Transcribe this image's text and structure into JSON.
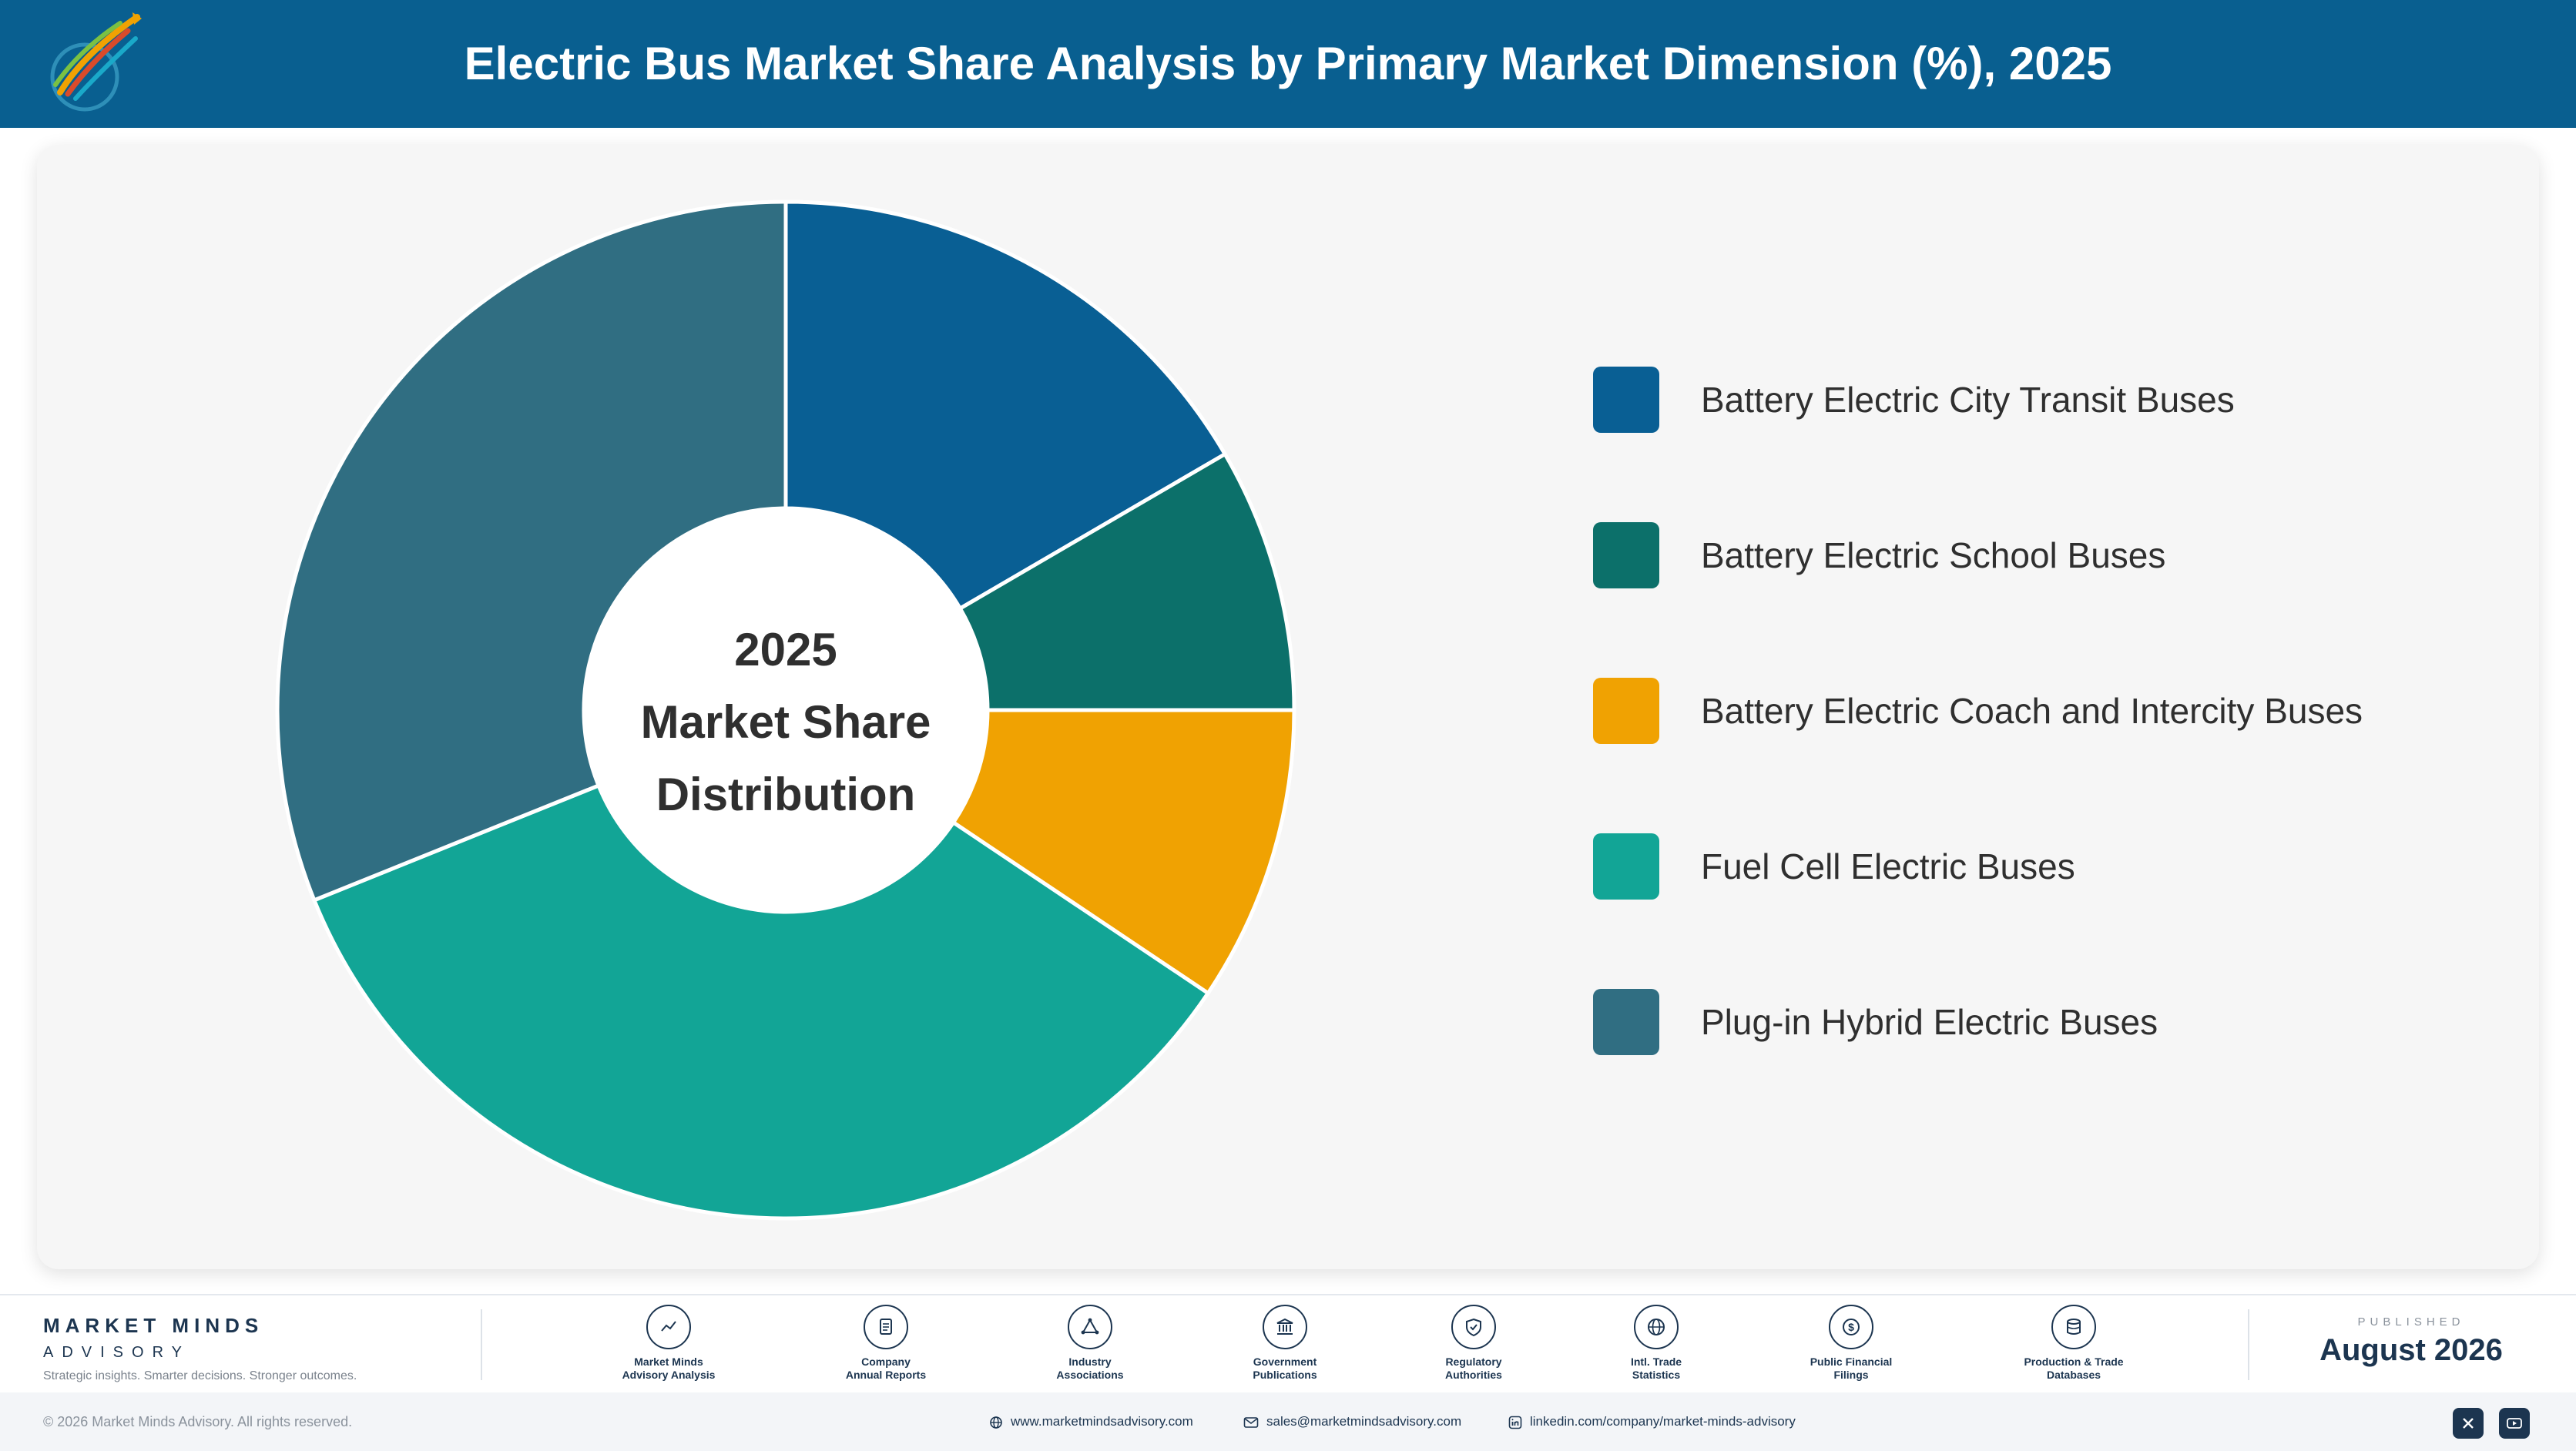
{
  "header": {
    "title": "Electric Bus Market Share Analysis by Primary Market Dimension (%), 2025"
  },
  "chart_data": {
    "type": "pie",
    "variant": "donut",
    "center_text": [
      "2025",
      "Market Share",
      "Distribution"
    ],
    "categories": [
      "Battery Electric City Transit Buses",
      "Battery Electric School Buses",
      "Battery Electric Coach and Intercity Buses",
      "Fuel Cell Electric Buses",
      "Plug-in Hybrid Electric Buses"
    ],
    "values": [
      16.6,
      8.4,
      9.4,
      34.5,
      31.1
    ],
    "colors": [
      "#095f94",
      "#0c706a",
      "#f0a202",
      "#12a596",
      "#306e82"
    ],
    "legend_position": "right"
  },
  "footer": {
    "brand_name": "MARKET MINDS",
    "brand_sub": "ADVISORY",
    "tagline": "Strategic insights. Smarter decisions. Stronger outcomes.",
    "sources": [
      {
        "icon": "chart-line-icon",
        "line1": "Market Minds",
        "line2": "Advisory Analysis"
      },
      {
        "icon": "document-icon",
        "line1": "Company",
        "line2": "Annual Reports"
      },
      {
        "icon": "network-icon",
        "line1": "Industry",
        "line2": "Associations"
      },
      {
        "icon": "government-building-icon",
        "line1": "Government",
        "line2": "Publications"
      },
      {
        "icon": "shield-check-icon",
        "line1": "Regulatory",
        "line2": "Authorities"
      },
      {
        "icon": "globe-icon",
        "line1": "Intl. Trade",
        "line2": "Statistics"
      },
      {
        "icon": "dollar-coin-icon",
        "line1": "Public Financial",
        "line2": "Filings"
      },
      {
        "icon": "database-icon",
        "line1": "Production & Trade",
        "line2": "Databases"
      }
    ],
    "published_label": "PUBLISHED",
    "published_date": "August 2026",
    "copyright": "© 2026 Market Minds Advisory. All rights reserved.",
    "website": "www.marketmindsadvisory.com",
    "email": "sales@marketmindsadvisory.com",
    "linkedin": "linkedin.com/company/market-minds-advisory"
  }
}
